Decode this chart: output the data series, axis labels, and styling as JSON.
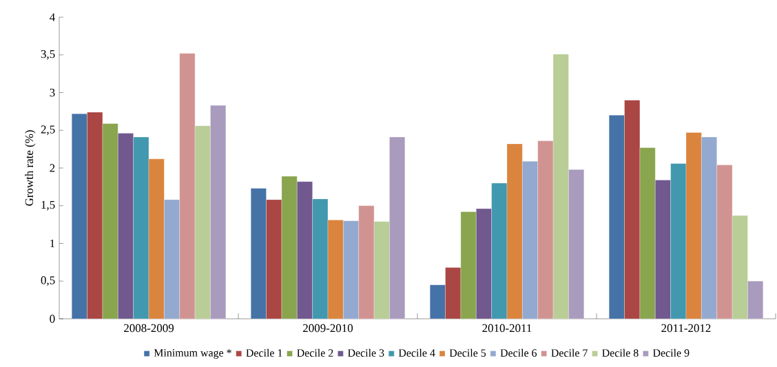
{
  "chart_data": {
    "type": "bar",
    "ylabel": "Growth rate (%)",
    "categories": [
      "2008-2009",
      "2009-2010",
      "2010-2011",
      "2011-2012"
    ],
    "series": [
      {
        "name": "Minimum wage *",
        "color": "#4572a7",
        "values": [
          2.72,
          1.73,
          0.45,
          2.7
        ]
      },
      {
        "name": "Decile 1",
        "color": "#aa4643",
        "values": [
          2.74,
          1.58,
          0.68,
          2.9
        ]
      },
      {
        "name": "Decile 2",
        "color": "#89a54e",
        "values": [
          2.59,
          1.89,
          1.42,
          2.27
        ]
      },
      {
        "name": "Decile 3",
        "color": "#71588f",
        "values": [
          2.46,
          1.82,
          1.46,
          1.84
        ]
      },
      {
        "name": "Decile 4",
        "color": "#4198af",
        "values": [
          2.41,
          1.59,
          1.8,
          2.06
        ]
      },
      {
        "name": "Decile 5",
        "color": "#db843d",
        "values": [
          2.12,
          1.31,
          2.32,
          2.47
        ]
      },
      {
        "name": "Decile 6",
        "color": "#93a9cf",
        "values": [
          1.58,
          1.3,
          2.09,
          2.41
        ]
      },
      {
        "name": "Decile 7",
        "color": "#d19392",
        "values": [
          3.52,
          1.5,
          2.36,
          2.04
        ]
      },
      {
        "name": "Decile 8",
        "color": "#b9cd96",
        "values": [
          2.56,
          1.29,
          3.51,
          1.37
        ]
      },
      {
        "name": "Decile 9",
        "color": "#a99bbd",
        "values": [
          2.83,
          2.41,
          1.98,
          0.5
        ]
      }
    ],
    "ylim": [
      0,
      4
    ],
    "yticks": [
      0,
      {
        "value": 0.5,
        "label": "0,5"
      },
      1,
      {
        "value": 1.5,
        "label": "1,5"
      },
      2,
      {
        "value": 2.5,
        "label": "2,5"
      },
      3,
      {
        "value": 3.5,
        "label": "3,5"
      },
      4
    ],
    "legend": "bottom"
  }
}
